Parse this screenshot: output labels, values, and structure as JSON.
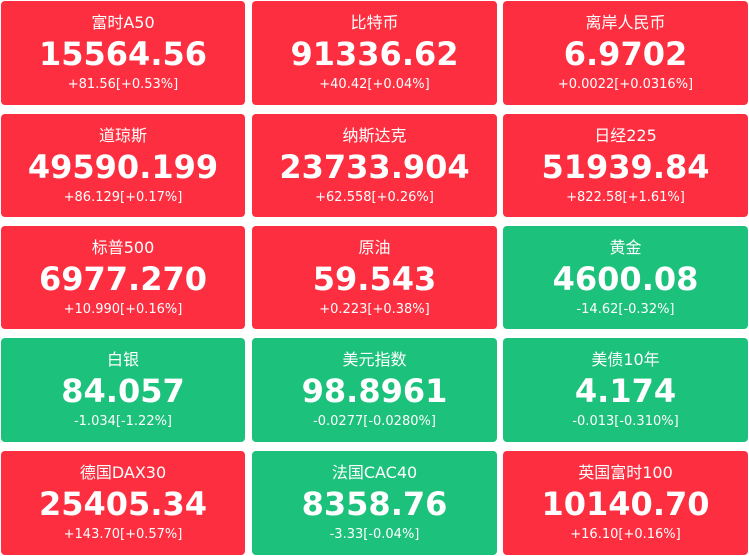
{
  "colors": {
    "up": "#fd2e3f",
    "down": "#1cc17b",
    "text": "#ffffff"
  },
  "tiles": [
    {
      "name": "富时A50",
      "price": "15564.56",
      "change": "+81.56[+0.53%]",
      "direction": "up"
    },
    {
      "name": "比特币",
      "price": "91336.62",
      "change": "+40.42[+0.04%]",
      "direction": "up"
    },
    {
      "name": "离岸人民币",
      "price": "6.9702",
      "change": "+0.0022[+0.0316%]",
      "direction": "up"
    },
    {
      "name": "道琼斯",
      "price": "49590.199",
      "change": "+86.129[+0.17%]",
      "direction": "up"
    },
    {
      "name": "纳斯达克",
      "price": "23733.904",
      "change": "+62.558[+0.26%]",
      "direction": "up"
    },
    {
      "name": "日经225",
      "price": "51939.84",
      "change": "+822.58[+1.61%]",
      "direction": "up"
    },
    {
      "name": "标普500",
      "price": "6977.270",
      "change": "+10.990[+0.16%]",
      "direction": "up"
    },
    {
      "name": "原油",
      "price": "59.543",
      "change": "+0.223[+0.38%]",
      "direction": "up"
    },
    {
      "name": "黄金",
      "price": "4600.08",
      "change": "-14.62[-0.32%]",
      "direction": "down"
    },
    {
      "name": "白银",
      "price": "84.057",
      "change": "-1.034[-1.22%]",
      "direction": "down"
    },
    {
      "name": "美元指数",
      "price": "98.8961",
      "change": "-0.0277[-0.0280%]",
      "direction": "down"
    },
    {
      "name": "美债10年",
      "price": "4.174",
      "change": "-0.013[-0.310%]",
      "direction": "down"
    },
    {
      "name": "德国DAX30",
      "price": "25405.34",
      "change": "+143.70[+0.57%]",
      "direction": "up"
    },
    {
      "name": "法国CAC40",
      "price": "8358.76",
      "change": "-3.33[-0.04%]",
      "direction": "down"
    },
    {
      "name": "英国富时100",
      "price": "10140.70",
      "change": "+16.10[+0.16%]",
      "direction": "up"
    }
  ]
}
